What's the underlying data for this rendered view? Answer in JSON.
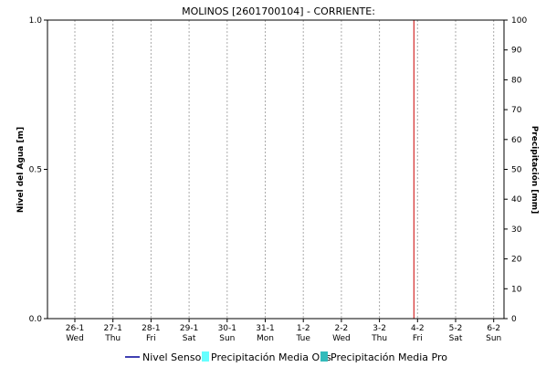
{
  "chart_data": {
    "type": "line",
    "title": "MOLINOS  [2601700104] - CORRIENTE:",
    "ylabel_left": "Nivel del Agua [m]",
    "ylabel_right": "Precipitación [mm]",
    "ylim_left": [
      0.0,
      1.0
    ],
    "yticks_left": [
      "0.0",
      "0.5",
      "1.0"
    ],
    "ylim_right": [
      0,
      100
    ],
    "yticks_right": [
      "0",
      "10",
      "20",
      "30",
      "40",
      "50",
      "60",
      "70",
      "80",
      "90",
      "100"
    ],
    "x_ticks": [
      {
        "day": "26-1",
        "weekday": "Wed"
      },
      {
        "day": "27-1",
        "weekday": "Thu"
      },
      {
        "day": "28-1",
        "weekday": "Fri"
      },
      {
        "day": "29-1",
        "weekday": "Sat"
      },
      {
        "day": "30-1",
        "weekday": "Sun"
      },
      {
        "day": "31-1",
        "weekday": "Mon"
      },
      {
        "day": "1-2",
        "weekday": "Tue"
      },
      {
        "day": "2-2",
        "weekday": "Wed"
      },
      {
        "day": "3-2",
        "weekday": "Thu"
      },
      {
        "day": "4-2",
        "weekday": "Fri"
      },
      {
        "day": "5-2",
        "weekday": "Sat"
      },
      {
        "day": "6-2",
        "weekday": "Sun"
      }
    ],
    "current_time_index": 9,
    "current_time_color": "#cc0000",
    "grid": true,
    "legend_position": "bottom",
    "series": [
      {
        "name": "Nivel Sensor",
        "type": "line",
        "color": "#000099",
        "values": []
      },
      {
        "name": "Precipitación Media Obs",
        "type": "bar",
        "color": "#66ffff",
        "values": []
      },
      {
        "name": "Precipitación Media Pro",
        "type": "bar",
        "color": "#33bbbb",
        "values": []
      }
    ]
  }
}
